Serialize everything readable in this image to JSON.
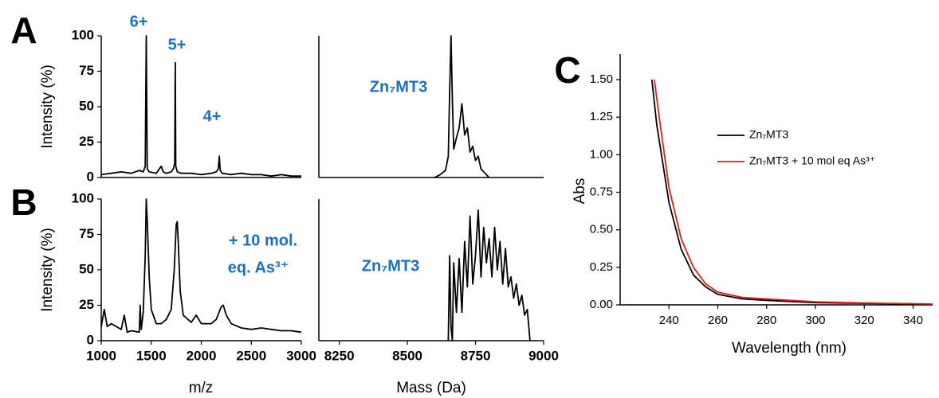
{
  "chart_data": [
    {
      "type": "line",
      "panel": "A",
      "ylabel": "Intensity (%)",
      "xlim": [
        1000,
        3000
      ],
      "ylim": [
        0,
        100
      ],
      "yticks": [
        0,
        25,
        50,
        75,
        100
      ],
      "annotations": [
        "6+",
        "5+",
        "4+"
      ],
      "series": [
        {
          "color": "#000000",
          "x": [
            1000,
            1100,
            1200,
            1300,
            1380,
            1420,
            1440,
            1450,
            1460,
            1480,
            1550,
            1600,
            1620,
            1650,
            1700,
            1720,
            1735,
            1740,
            1745,
            1760,
            1800,
            1900,
            2000,
            2100,
            2150,
            2170,
            2180,
            2190,
            2210,
            2300,
            2400,
            2500,
            2600,
            2700,
            2800,
            2900,
            3000
          ],
          "values": [
            2,
            3,
            4,
            3,
            5,
            4,
            8,
            100,
            6,
            4,
            3,
            8,
            4,
            3,
            4,
            6,
            10,
            81,
            8,
            4,
            3,
            3,
            2,
            3,
            4,
            6,
            15,
            5,
            3,
            2,
            3,
            2,
            2,
            1,
            2,
            1,
            1
          ]
        }
      ]
    },
    {
      "type": "line",
      "xlim": [
        8175,
        9000
      ],
      "ylim": [
        0,
        100
      ],
      "annotations": [
        "Zn₇MT3"
      ],
      "series": [
        {
          "color": "#000000",
          "x": [
            8600,
            8620,
            8640,
            8650,
            8655,
            8660,
            8665,
            8670,
            8680,
            8690,
            8700,
            8710,
            8720,
            8730,
            8740,
            8750,
            8760,
            8770,
            8780,
            8800
          ],
          "values": [
            0,
            2,
            5,
            15,
            60,
            100,
            55,
            20,
            28,
            35,
            52,
            30,
            35,
            18,
            22,
            12,
            15,
            6,
            4,
            0
          ]
        }
      ]
    },
    {
      "type": "line",
      "panel": "B",
      "ylabel": "Intensity (%)",
      "xlabel": "m/z",
      "xlim": [
        1000,
        3000
      ],
      "ylim": [
        0,
        100
      ],
      "xticks": [
        1000,
        1500,
        2000,
        2500,
        3000
      ],
      "yticks": [
        0,
        25,
        50,
        75,
        100
      ],
      "annotations": [
        "+ 10 mol.",
        "eq. As³⁺"
      ],
      "series": [
        {
          "color": "#000000",
          "x": [
            1000,
            1030,
            1060,
            1100,
            1200,
            1230,
            1260,
            1300,
            1380,
            1390,
            1400,
            1420,
            1440,
            1450,
            1460,
            1480,
            1500,
            1550,
            1600,
            1650,
            1700,
            1730,
            1750,
            1760,
            1770,
            1790,
            1820,
            1900,
            1950,
            2000,
            2100,
            2150,
            2200,
            2220,
            2250,
            2300,
            2400,
            2500,
            2600,
            2700,
            2800,
            2900,
            3000
          ],
          "values": [
            10,
            22,
            10,
            12,
            8,
            18,
            6,
            7,
            6,
            25,
            8,
            20,
            60,
            100,
            85,
            45,
            22,
            12,
            12,
            15,
            22,
            50,
            82,
            84,
            70,
            35,
            18,
            13,
            18,
            12,
            12,
            15,
            24,
            25,
            18,
            12,
            9,
            8,
            9,
            8,
            7,
            7,
            6
          ]
        }
      ]
    },
    {
      "type": "line",
      "xlabel": "Mass (Da)",
      "xlim": [
        8175,
        9000
      ],
      "ylim": [
        0,
        100
      ],
      "xticks": [
        8250,
        8500,
        8750,
        9000
      ],
      "annotations": [
        "Zn₇MT3"
      ],
      "series": [
        {
          "color": "#000000",
          "x": [
            8650,
            8655,
            8660,
            8665,
            8670,
            8680,
            8690,
            8700,
            8710,
            8720,
            8730,
            8740,
            8750,
            8760,
            8770,
            8780,
            8790,
            8800,
            8810,
            8820,
            8830,
            8840,
            8850,
            8860,
            8870,
            8880,
            8890,
            8900,
            8910,
            8920,
            8930,
            8940,
            8950
          ],
          "values": [
            0,
            60,
            10,
            0,
            55,
            20,
            58,
            20,
            70,
            38,
            88,
            40,
            60,
            92,
            45,
            80,
            55,
            72,
            45,
            80,
            50,
            70,
            40,
            65,
            38,
            45,
            30,
            40,
            25,
            32,
            18,
            22,
            0
          ]
        }
      ]
    },
    {
      "type": "line",
      "panel": "C",
      "xlabel": "Wavelength (nm)",
      "ylabel": "Abs",
      "xlim": [
        220,
        348
      ],
      "ylim": [
        0,
        1.67
      ],
      "xticks": [
        240,
        260,
        280,
        300,
        320,
        340
      ],
      "yticks": [
        {
          "value": 0,
          "label": "0.00"
        },
        {
          "value": 0.25,
          "label": "0.25"
        },
        {
          "value": 0.5,
          "label": "0.50"
        },
        {
          "value": 0.75,
          "label": "0.75"
        },
        {
          "value": 1,
          "label": "1.00"
        },
        {
          "value": 1.25,
          "label": "1.25"
        },
        {
          "value": 1.5,
          "label": "1.50"
        }
      ],
      "legend": "upper right",
      "series": [
        {
          "name": "Zn₇MT3",
          "color": "#000000",
          "x": [
            233,
            235,
            240,
            245,
            250,
            255,
            260,
            270,
            280,
            300,
            320,
            348
          ],
          "values": [
            1.5,
            1.2,
            0.68,
            0.37,
            0.2,
            0.12,
            0.07,
            0.04,
            0.03,
            0.015,
            0.01,
            0.005
          ]
        },
        {
          "name": "Zn₇MT3 + 10 mol eq As³⁺",
          "color": "#e0201b",
          "x": [
            234,
            236,
            240,
            245,
            250,
            255,
            260,
            270,
            280,
            300,
            320,
            348
          ],
          "values": [
            1.5,
            1.25,
            0.78,
            0.44,
            0.25,
            0.14,
            0.085,
            0.05,
            0.04,
            0.02,
            0.012,
            0.006
          ]
        }
      ]
    }
  ]
}
